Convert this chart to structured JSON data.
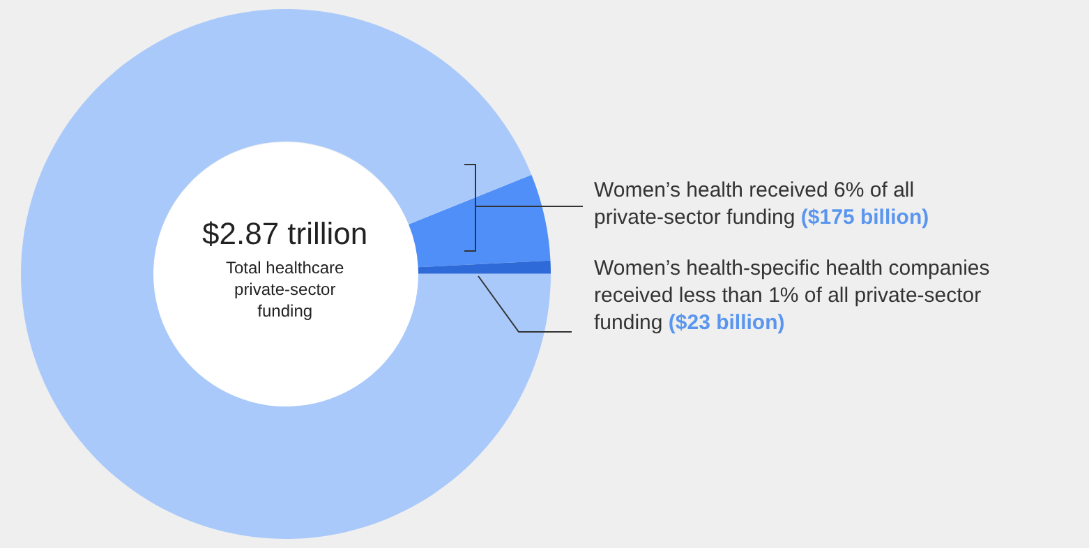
{
  "chart_data": {
    "type": "donut",
    "categories": [
      null,
      null,
      null
    ],
    "values": [
      5.3,
      0.8,
      93.9
    ],
    "colors": [
      "#4f8ff7",
      "#2f6bd8",
      "#a9c9fb"
    ],
    "legend": false,
    "annotations": [
      "$2.87 trillion",
      "Total healthcare private-sector funding",
      "Women’s health received 6% of all private-sector funding",
      "($175 billion)",
      "Women’s health-specific health companies received less than 1% of all private-sector funding",
      "($23 billion)"
    ]
  }
}
